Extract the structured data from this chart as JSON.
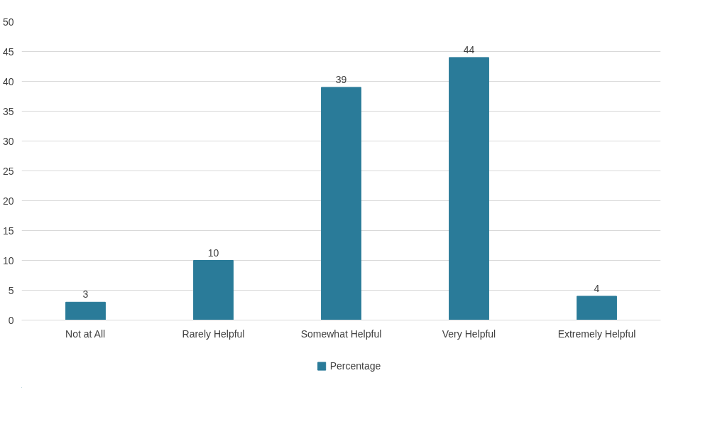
{
  "chart_data": {
    "type": "bar",
    "categories": [
      "Not at All",
      "Rarely Helpful",
      "Somewhat Helpful",
      "Very Helpful",
      "Extremely Helpful"
    ],
    "series": [
      {
        "name": "Percentage",
        "color": "#2a7b99",
        "values": [
          3,
          10,
          39,
          44,
          4
        ]
      }
    ],
    "ylim": [
      0,
      50
    ],
    "yticks": [
      0,
      5,
      10,
      15,
      20,
      25,
      30,
      35,
      40,
      45,
      50
    ],
    "grid": "y",
    "legend": "bottom",
    "data_labels": true
  }
}
